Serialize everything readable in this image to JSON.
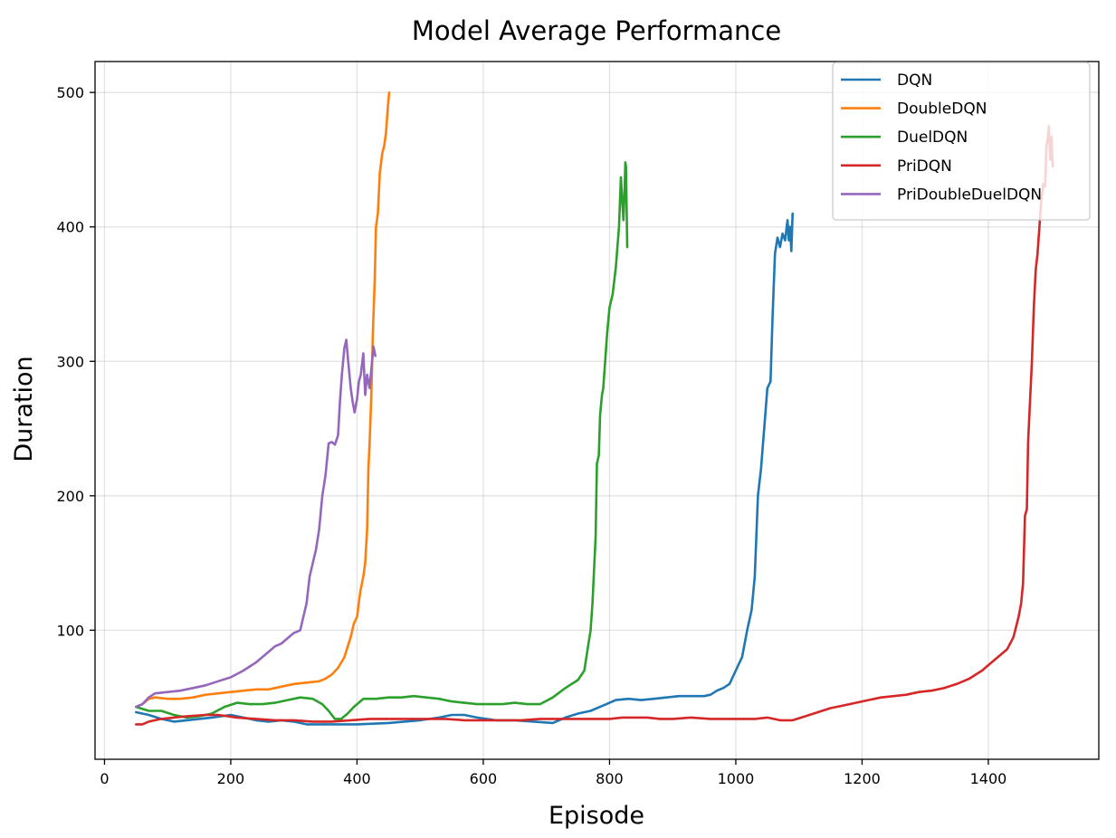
{
  "chart_data": {
    "type": "line",
    "title": "Model Average Performance",
    "xlabel": "Episode",
    "ylabel": "Duration",
    "xlim": [
      -15,
      1575
    ],
    "ylim": [
      4,
      523
    ],
    "xticks": [
      0,
      200,
      400,
      600,
      800,
      1000,
      1200,
      1400
    ],
    "yticks": [
      100,
      200,
      300,
      400,
      500
    ],
    "grid": true,
    "legend_position": "upper right",
    "series": [
      {
        "name": "DQN",
        "color": "#1f77b4",
        "points": [
          [
            50,
            39
          ],
          [
            70,
            37
          ],
          [
            90,
            34
          ],
          [
            110,
            32
          ],
          [
            130,
            33
          ],
          [
            150,
            34
          ],
          [
            170,
            35
          ],
          [
            200,
            37
          ],
          [
            220,
            35
          ],
          [
            240,
            33
          ],
          [
            260,
            32
          ],
          [
            280,
            33
          ],
          [
            300,
            32
          ],
          [
            320,
            30
          ],
          [
            350,
            30
          ],
          [
            400,
            30
          ],
          [
            450,
            31
          ],
          [
            500,
            33
          ],
          [
            530,
            35
          ],
          [
            550,
            37
          ],
          [
            570,
            37
          ],
          [
            590,
            35
          ],
          [
            620,
            33
          ],
          [
            650,
            33
          ],
          [
            680,
            32
          ],
          [
            710,
            31
          ],
          [
            730,
            35
          ],
          [
            750,
            38
          ],
          [
            770,
            40
          ],
          [
            790,
            44
          ],
          [
            810,
            48
          ],
          [
            830,
            49
          ],
          [
            850,
            48
          ],
          [
            870,
            49
          ],
          [
            890,
            50
          ],
          [
            910,
            51
          ],
          [
            930,
            51
          ],
          [
            950,
            51
          ],
          [
            960,
            52
          ],
          [
            970,
            55
          ],
          [
            980,
            57
          ],
          [
            990,
            60
          ],
          [
            1000,
            70
          ],
          [
            1010,
            80
          ],
          [
            1018,
            100
          ],
          [
            1025,
            115
          ],
          [
            1030,
            140
          ],
          [
            1035,
            200
          ],
          [
            1040,
            220
          ],
          [
            1045,
            250
          ],
          [
            1050,
            280
          ],
          [
            1055,
            285
          ],
          [
            1058,
            330
          ],
          [
            1062,
            380
          ],
          [
            1066,
            392
          ],
          [
            1070,
            385
          ],
          [
            1074,
            395
          ],
          [
            1078,
            390
          ],
          [
            1082,
            405
          ],
          [
            1084,
            390
          ],
          [
            1086,
            400
          ],
          [
            1088,
            382
          ],
          [
            1090,
            410
          ]
        ]
      },
      {
        "name": "DoubleDQN",
        "color": "#ff7f0e",
        "points": [
          [
            50,
            43
          ],
          [
            60,
            45
          ],
          [
            70,
            49
          ],
          [
            80,
            50
          ],
          [
            100,
            49
          ],
          [
            120,
            49
          ],
          [
            140,
            50
          ],
          [
            160,
            52
          ],
          [
            180,
            53
          ],
          [
            200,
            54
          ],
          [
            220,
            55
          ],
          [
            240,
            56
          ],
          [
            260,
            56
          ],
          [
            280,
            58
          ],
          [
            300,
            60
          ],
          [
            320,
            61
          ],
          [
            340,
            62
          ],
          [
            350,
            64
          ],
          [
            360,
            67
          ],
          [
            370,
            72
          ],
          [
            380,
            80
          ],
          [
            390,
            95
          ],
          [
            395,
            105
          ],
          [
            400,
            110
          ],
          [
            405,
            128
          ],
          [
            410,
            140
          ],
          [
            413,
            150
          ],
          [
            416,
            175
          ],
          [
            418,
            220
          ],
          [
            420,
            240
          ],
          [
            423,
            280
          ],
          [
            425,
            320
          ],
          [
            428,
            360
          ],
          [
            430,
            400
          ],
          [
            433,
            410
          ],
          [
            436,
            440
          ],
          [
            440,
            455
          ],
          [
            443,
            460
          ],
          [
            446,
            470
          ],
          [
            449,
            490
          ],
          [
            451,
            500
          ]
        ]
      },
      {
        "name": "DuelDQN",
        "color": "#2ca02c",
        "points": [
          [
            50,
            43
          ],
          [
            70,
            40
          ],
          [
            90,
            40
          ],
          [
            110,
            37
          ],
          [
            130,
            35
          ],
          [
            150,
            36
          ],
          [
            170,
            38
          ],
          [
            190,
            43
          ],
          [
            210,
            46
          ],
          [
            230,
            45
          ],
          [
            250,
            45
          ],
          [
            270,
            46
          ],
          [
            290,
            48
          ],
          [
            310,
            50
          ],
          [
            330,
            49
          ],
          [
            345,
            45
          ],
          [
            355,
            40
          ],
          [
            365,
            34
          ],
          [
            375,
            34
          ],
          [
            385,
            38
          ],
          [
            395,
            43
          ],
          [
            410,
            49
          ],
          [
            430,
            49
          ],
          [
            450,
            50
          ],
          [
            470,
            50
          ],
          [
            490,
            51
          ],
          [
            510,
            50
          ],
          [
            530,
            49
          ],
          [
            550,
            47
          ],
          [
            570,
            46
          ],
          [
            590,
            45
          ],
          [
            610,
            45
          ],
          [
            630,
            45
          ],
          [
            650,
            46
          ],
          [
            670,
            45
          ],
          [
            690,
            45
          ],
          [
            710,
            50
          ],
          [
            730,
            57
          ],
          [
            740,
            60
          ],
          [
            750,
            63
          ],
          [
            760,
            70
          ],
          [
            765,
            85
          ],
          [
            770,
            100
          ],
          [
            773,
            120
          ],
          [
            776,
            150
          ],
          [
            778,
            170
          ],
          [
            780,
            224
          ],
          [
            783,
            230
          ],
          [
            785,
            260
          ],
          [
            788,
            275
          ],
          [
            790,
            280
          ],
          [
            793,
            300
          ],
          [
            796,
            320
          ],
          [
            800,
            340
          ],
          [
            805,
            350
          ],
          [
            810,
            370
          ],
          [
            815,
            400
          ],
          [
            818,
            437
          ],
          [
            820,
            420
          ],
          [
            822,
            405
          ],
          [
            824,
            430
          ],
          [
            825,
            448
          ],
          [
            826,
            445
          ],
          [
            828,
            385
          ]
        ]
      },
      {
        "name": "PriDQN",
        "color": "#d62728",
        "points": [
          [
            50,
            30
          ],
          [
            60,
            30
          ],
          [
            70,
            32
          ],
          [
            90,
            34
          ],
          [
            110,
            35
          ],
          [
            130,
            36
          ],
          [
            160,
            37
          ],
          [
            180,
            37
          ],
          [
            210,
            35
          ],
          [
            240,
            34
          ],
          [
            270,
            33
          ],
          [
            300,
            33
          ],
          [
            330,
            32
          ],
          [
            360,
            32
          ],
          [
            390,
            33
          ],
          [
            420,
            34
          ],
          [
            450,
            34
          ],
          [
            480,
            34
          ],
          [
            510,
            34
          ],
          [
            540,
            34
          ],
          [
            570,
            33
          ],
          [
            600,
            33
          ],
          [
            630,
            33
          ],
          [
            660,
            33
          ],
          [
            690,
            34
          ],
          [
            720,
            34
          ],
          [
            750,
            34
          ],
          [
            780,
            34
          ],
          [
            800,
            34
          ],
          [
            820,
            35
          ],
          [
            840,
            35
          ],
          [
            860,
            35
          ],
          [
            880,
            34
          ],
          [
            900,
            34
          ],
          [
            930,
            35
          ],
          [
            960,
            34
          ],
          [
            990,
            34
          ],
          [
            1010,
            34
          ],
          [
            1030,
            34
          ],
          [
            1050,
            35
          ],
          [
            1070,
            33
          ],
          [
            1090,
            33
          ],
          [
            1110,
            36
          ],
          [
            1130,
            39
          ],
          [
            1150,
            42
          ],
          [
            1170,
            44
          ],
          [
            1190,
            46
          ],
          [
            1210,
            48
          ],
          [
            1230,
            50
          ],
          [
            1250,
            51
          ],
          [
            1270,
            52
          ],
          [
            1290,
            54
          ],
          [
            1310,
            55
          ],
          [
            1330,
            57
          ],
          [
            1350,
            60
          ],
          [
            1370,
            64
          ],
          [
            1390,
            70
          ],
          [
            1410,
            78
          ],
          [
            1430,
            86
          ],
          [
            1440,
            95
          ],
          [
            1448,
            110
          ],
          [
            1452,
            120
          ],
          [
            1455,
            135
          ],
          [
            1458,
            185
          ],
          [
            1461,
            190
          ],
          [
            1463,
            240
          ],
          [
            1466,
            270
          ],
          [
            1469,
            300
          ],
          [
            1472,
            340
          ],
          [
            1475,
            368
          ],
          [
            1478,
            380
          ],
          [
            1481,
            400
          ],
          [
            1484,
            420
          ],
          [
            1487,
            432
          ],
          [
            1490,
            430
          ],
          [
            1492,
            460
          ],
          [
            1494,
            465
          ],
          [
            1496,
            475
          ],
          [
            1498,
            450
          ],
          [
            1500,
            467
          ],
          [
            1502,
            445
          ]
        ]
      },
      {
        "name": "PriDoubleDuelDQN",
        "color": "#9467bd",
        "points": [
          [
            50,
            43
          ],
          [
            60,
            45
          ],
          [
            70,
            50
          ],
          [
            80,
            53
          ],
          [
            100,
            54
          ],
          [
            120,
            55
          ],
          [
            140,
            57
          ],
          [
            160,
            59
          ],
          [
            180,
            62
          ],
          [
            200,
            65
          ],
          [
            220,
            70
          ],
          [
            240,
            76
          ],
          [
            250,
            80
          ],
          [
            260,
            84
          ],
          [
            270,
            88
          ],
          [
            280,
            90
          ],
          [
            290,
            94
          ],
          [
            300,
            98
          ],
          [
            310,
            100
          ],
          [
            315,
            110
          ],
          [
            320,
            120
          ],
          [
            325,
            140
          ],
          [
            330,
            150
          ],
          [
            335,
            160
          ],
          [
            340,
            175
          ],
          [
            345,
            200
          ],
          [
            350,
            215
          ],
          [
            355,
            239
          ],
          [
            360,
            240
          ],
          [
            365,
            238
          ],
          [
            370,
            245
          ],
          [
            373,
            270
          ],
          [
            376,
            290
          ],
          [
            380,
            310
          ],
          [
            383,
            316
          ],
          [
            386,
            300
          ],
          [
            390,
            280
          ],
          [
            393,
            270
          ],
          [
            396,
            262
          ],
          [
            400,
            272
          ],
          [
            403,
            285
          ],
          [
            406,
            290
          ],
          [
            410,
            306
          ],
          [
            413,
            275
          ],
          [
            416,
            290
          ],
          [
            420,
            280
          ],
          [
            423,
            296
          ],
          [
            426,
            311
          ],
          [
            429,
            304
          ]
        ]
      }
    ]
  }
}
